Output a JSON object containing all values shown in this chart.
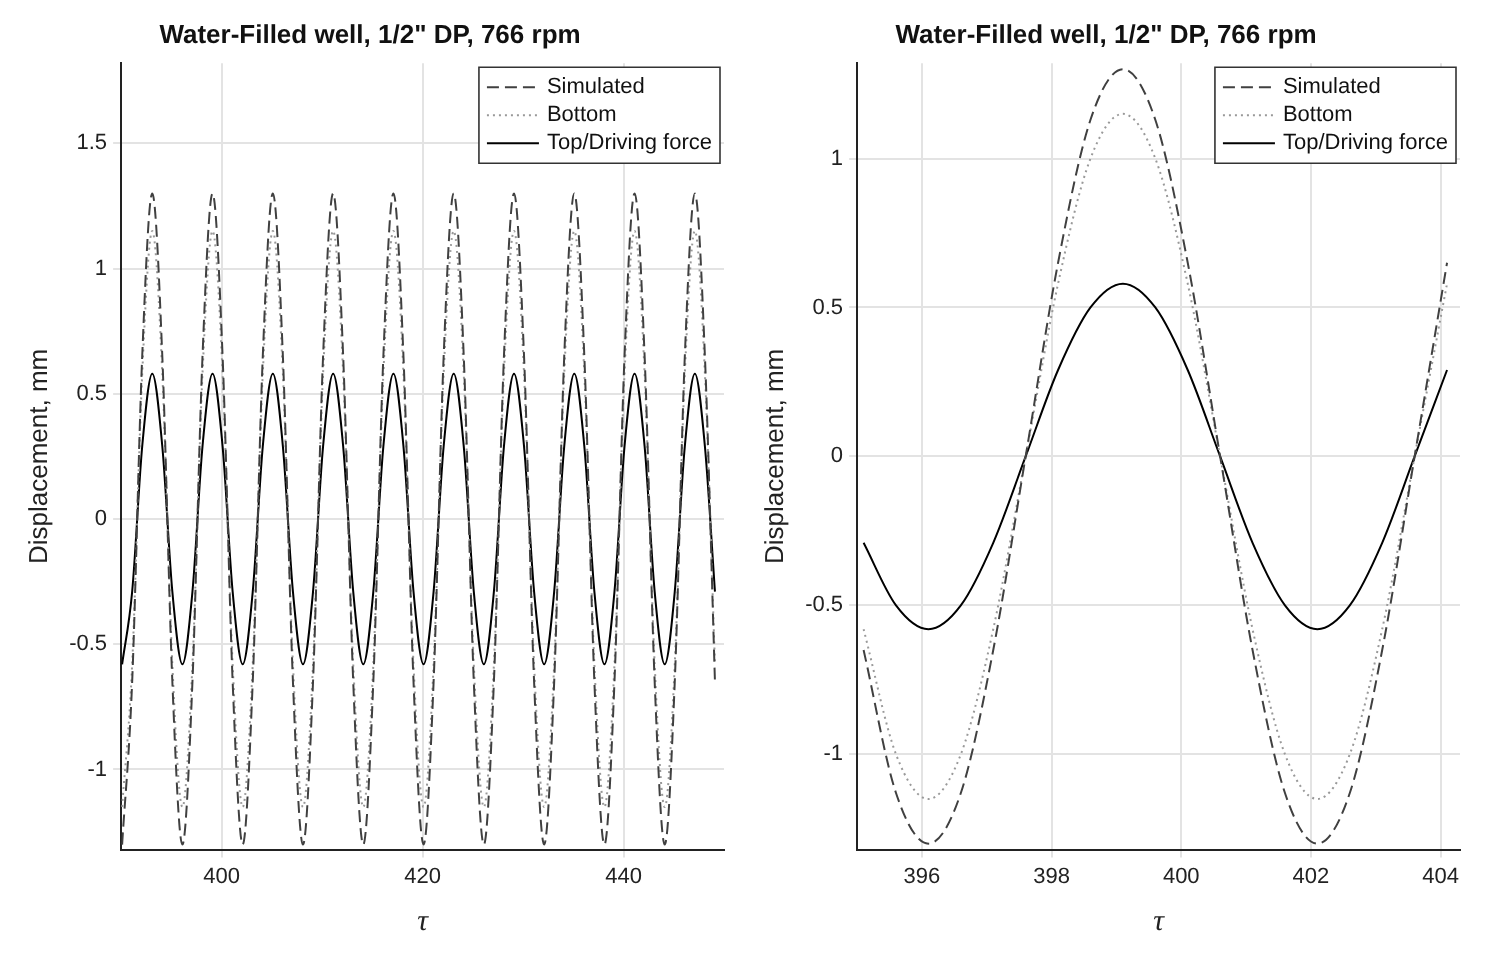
{
  "chart_data": [
    {
      "type": "line",
      "title": "Water-Filled well, 1/2\" DP, 766 rpm",
      "xlabel": "τ",
      "ylabel": "Displacement, mm",
      "xlim": [
        390,
        450
      ],
      "xticks": [
        400,
        420,
        440
      ],
      "ylim": [
        -1.32,
        1.82
      ],
      "yticks": [
        -1,
        -0.5,
        0,
        0.5,
        1,
        1.5
      ],
      "grid": true,
      "legend": "top right",
      "marker": "none",
      "x": [
        390.1,
        391.1,
        392.1,
        393.1,
        394.1,
        395.1,
        396.1,
        397.1,
        398.1,
        399.1,
        400.1,
        401.1,
        402.1,
        403.1,
        404.1,
        405.1,
        406.1,
        407.1,
        408.1,
        409.1,
        410.1,
        411.1,
        412.1,
        413.1,
        414.1,
        415.1,
        416.1,
        417.1,
        418.1,
        419.1,
        420.1,
        421.1,
        422.1,
        423.1,
        424.1,
        425.1,
        426.1,
        427.1,
        428.1,
        429.1,
        430.1,
        431.1,
        432.1,
        433.1,
        434.1,
        435.1,
        436.1,
        437.1,
        438.1,
        439.1,
        440.1,
        441.1,
        442.1,
        443.1,
        444.1,
        445.1,
        446.1,
        447.1,
        448.1,
        449.1
      ],
      "series": [
        {
          "name": "Simulated",
          "color": "#404040",
          "line_style": "dashed",
          "values": [
            -1.3,
            -0.65,
            0.65,
            1.3,
            0.65,
            -0.65,
            -1.3,
            -0.65,
            0.65,
            1.3,
            0.65,
            -0.65,
            -1.3,
            -0.65,
            0.65,
            1.3,
            0.65,
            -0.65,
            -1.3,
            -0.65,
            0.65,
            1.3,
            0.65,
            -0.65,
            -1.3,
            -0.65,
            0.65,
            1.3,
            0.65,
            -0.65,
            -1.3,
            -0.65,
            0.65,
            1.3,
            0.65,
            -0.65,
            -1.3,
            -0.65,
            0.65,
            1.3,
            0.65,
            -0.65,
            -1.3,
            -0.65,
            0.65,
            1.3,
            0.65,
            -0.65,
            -1.3,
            -0.65,
            0.65,
            1.3,
            0.65,
            -0.65,
            -1.3,
            -0.65,
            0.65,
            1.3,
            0.65,
            -0.65
          ]
        },
        {
          "name": "Bottom",
          "color": "#999999",
          "line_style": "dotted",
          "values": [
            -1.15,
            -0.58,
            0.58,
            1.15,
            0.58,
            -0.58,
            -1.15,
            -0.58,
            0.58,
            1.15,
            0.58,
            -0.58,
            -1.15,
            -0.58,
            0.58,
            1.15,
            0.58,
            -0.58,
            -1.15,
            -0.58,
            0.58,
            1.15,
            0.58,
            -0.58,
            -1.15,
            -0.58,
            0.58,
            1.15,
            0.58,
            -0.58,
            -1.15,
            -0.58,
            0.58,
            1.15,
            0.58,
            -0.58,
            -1.15,
            -0.58,
            0.58,
            1.15,
            0.58,
            -0.58,
            -1.15,
            -0.58,
            0.58,
            1.15,
            0.58,
            -0.58,
            -1.15,
            -0.58,
            0.58,
            1.15,
            0.58,
            -0.58,
            -1.15,
            -0.58,
            0.58,
            1.15,
            0.58,
            -0.58
          ]
        },
        {
          "name": "Top/Driving force",
          "color": "#000000",
          "line_style": "solid",
          "values": [
            -0.58,
            -0.29,
            0.29,
            0.58,
            0.29,
            -0.29,
            -0.58,
            -0.29,
            0.29,
            0.58,
            0.29,
            -0.29,
            -0.58,
            -0.29,
            0.29,
            0.58,
            0.29,
            -0.29,
            -0.58,
            -0.29,
            0.29,
            0.58,
            0.29,
            -0.29,
            -0.58,
            -0.29,
            0.29,
            0.58,
            0.29,
            -0.29,
            -0.58,
            -0.29,
            0.29,
            0.58,
            0.29,
            -0.29,
            -0.58,
            -0.29,
            0.29,
            0.58,
            0.29,
            -0.29,
            -0.58,
            -0.29,
            0.29,
            0.58,
            0.29,
            -0.29,
            -0.58,
            -0.29,
            0.29,
            0.58,
            0.29,
            -0.29,
            -0.58,
            -0.29,
            0.29,
            0.58,
            0.29,
            -0.29
          ]
        }
      ]
    },
    {
      "type": "line",
      "title": "Water-Filled well, 1/2\" DP, 766 rpm",
      "xlabel": "τ",
      "ylabel": "Displacement, mm",
      "xlim": [
        395,
        404.3
      ],
      "xticks": [
        396,
        398,
        400,
        402,
        404
      ],
      "ylim": [
        -1.32,
        1.32
      ],
      "yticks": [
        -1,
        -0.5,
        0,
        0.5,
        1
      ],
      "grid": true,
      "legend": "top right",
      "marker": "none",
      "x": [
        395.1,
        395.6,
        396.1,
        396.6,
        397.1,
        397.6,
        398.1,
        398.6,
        399.1,
        399.6,
        400.1,
        400.6,
        401.1,
        401.6,
        402.1,
        402.6,
        403.1,
        403.6,
        404.1
      ],
      "series": [
        {
          "name": "Simulated",
          "color": "#404040",
          "line_style": "dashed",
          "values": [
            -0.65,
            -1.13,
            -1.3,
            -1.13,
            -0.65,
            0,
            0.65,
            1.13,
            1.3,
            1.13,
            0.65,
            0,
            -0.65,
            -1.13,
            -1.3,
            -1.13,
            -0.65,
            0,
            0.65
          ]
        },
        {
          "name": "Bottom",
          "color": "#999999",
          "line_style": "dotted",
          "values": [
            -0.58,
            -1,
            -1.15,
            -1,
            -0.58,
            0,
            0.58,
            1,
            1.15,
            1,
            0.58,
            0,
            -0.58,
            -1,
            -1.15,
            -1,
            -0.58,
            0,
            0.58
          ]
        },
        {
          "name": "Top/Driving force",
          "color": "#000000",
          "line_style": "solid",
          "values": [
            -0.29,
            -0.5,
            -0.58,
            -0.5,
            -0.29,
            0,
            0.29,
            0.5,
            0.58,
            0.5,
            0.29,
            0,
            -0.29,
            -0.5,
            -0.58,
            -0.5,
            -0.29,
            0,
            0.29
          ]
        }
      ]
    }
  ]
}
